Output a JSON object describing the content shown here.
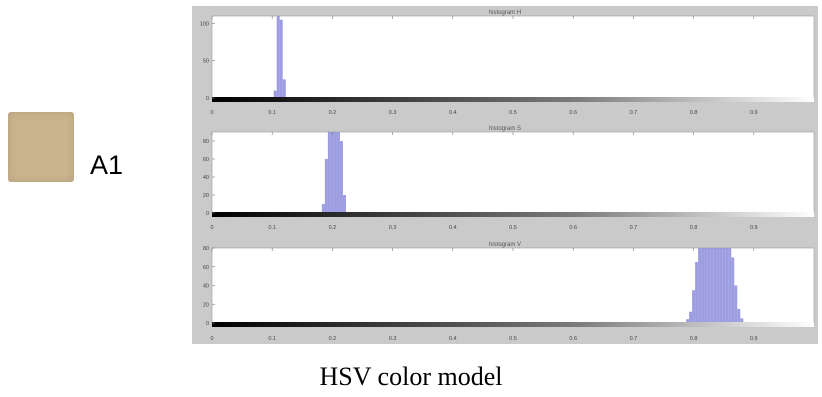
{
  "sample": {
    "label": "A1",
    "swatch_color": "#c9b48f"
  },
  "caption": "HSV color model",
  "chart_data": [
    {
      "type": "bar",
      "title": "histogram H",
      "xlim": [
        0,
        1
      ],
      "ylim": [
        0,
        110
      ],
      "xticks": [
        "0",
        "0.1",
        "0.2",
        "0.3",
        "0.4",
        "0.5",
        "0.6",
        "0.7",
        "0.8",
        "0.9"
      ],
      "yticks": [
        "0",
        "50",
        "100"
      ],
      "bin_width": 0.005,
      "bars": [
        {
          "x": 0.105,
          "y": 10
        },
        {
          "x": 0.11,
          "y": 112
        },
        {
          "x": 0.115,
          "y": 105
        },
        {
          "x": 0.12,
          "y": 25
        }
      ],
      "bar_color": "#8c8cdc"
    },
    {
      "type": "bar",
      "title": "histogram S",
      "xlim": [
        0,
        1
      ],
      "ylim": [
        0,
        90
      ],
      "xticks": [
        "0",
        "0.1",
        "0.2",
        "0.3",
        "0.4",
        "0.5",
        "0.6",
        "0.7",
        "0.8",
        "0.9"
      ],
      "yticks": [
        "0",
        "20",
        "40",
        "60",
        "80"
      ],
      "bin_width": 0.005,
      "bars": [
        {
          "x": 0.185,
          "y": 10
        },
        {
          "x": 0.19,
          "y": 60
        },
        {
          "x": 0.195,
          "y": 95
        },
        {
          "x": 0.2,
          "y": 95
        },
        {
          "x": 0.205,
          "y": 95
        },
        {
          "x": 0.21,
          "y": 95
        },
        {
          "x": 0.215,
          "y": 80
        },
        {
          "x": 0.22,
          "y": 20
        }
      ],
      "bar_color": "#8c8cdc"
    },
    {
      "type": "bar",
      "title": "histogram V",
      "xlim": [
        0,
        1
      ],
      "ylim": [
        0,
        80
      ],
      "xticks": [
        "0",
        "0.1",
        "0.2",
        "0.3",
        "0.4",
        "0.5",
        "0.6",
        "0.7",
        "0.8",
        "0.9"
      ],
      "yticks": [
        "0",
        "20",
        "40",
        "60",
        "80"
      ],
      "bin_width": 0.005,
      "bars": [
        {
          "x": 0.79,
          "y": 4
        },
        {
          "x": 0.795,
          "y": 12
        },
        {
          "x": 0.8,
          "y": 35
        },
        {
          "x": 0.805,
          "y": 65
        },
        {
          "x": 0.81,
          "y": 85
        },
        {
          "x": 0.815,
          "y": 85
        },
        {
          "x": 0.82,
          "y": 85
        },
        {
          "x": 0.825,
          "y": 85
        },
        {
          "x": 0.83,
          "y": 85
        },
        {
          "x": 0.835,
          "y": 85
        },
        {
          "x": 0.84,
          "y": 85
        },
        {
          "x": 0.845,
          "y": 85
        },
        {
          "x": 0.85,
          "y": 85
        },
        {
          "x": 0.855,
          "y": 85
        },
        {
          "x": 0.86,
          "y": 85
        },
        {
          "x": 0.865,
          "y": 70
        },
        {
          "x": 0.87,
          "y": 40
        },
        {
          "x": 0.875,
          "y": 15
        },
        {
          "x": 0.88,
          "y": 5
        }
      ],
      "bar_color": "#8c8cdc"
    }
  ]
}
